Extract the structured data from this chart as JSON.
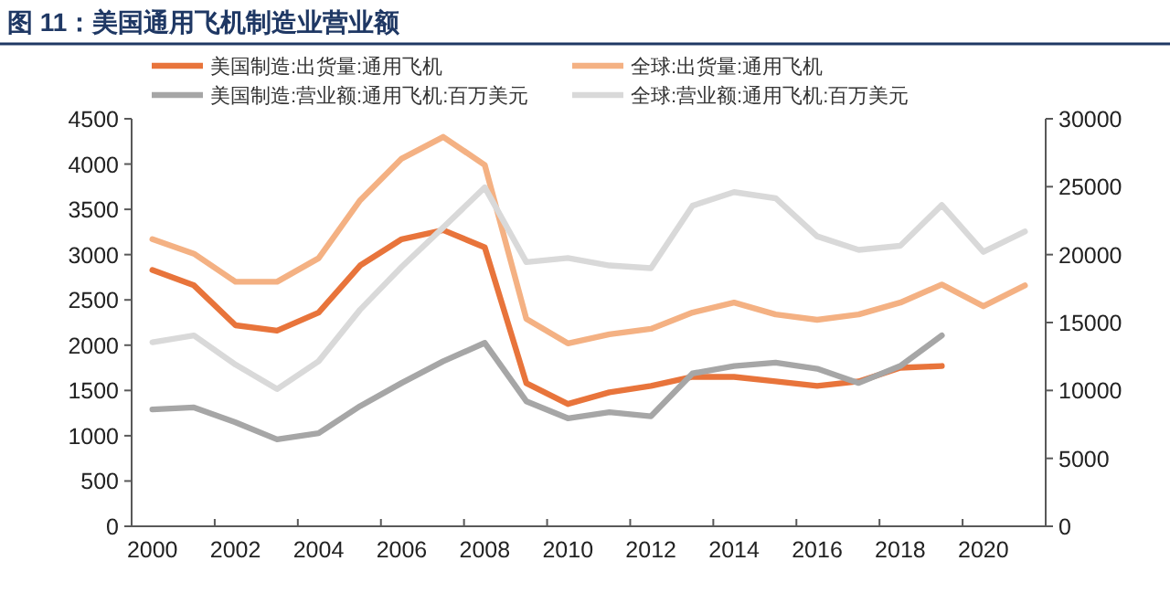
{
  "chart_data": {
    "type": "line",
    "title": "图 11：美国通用飞机制造业营业额",
    "categories": [
      "2000",
      null,
      "2002",
      null,
      "2004",
      null,
      "2006",
      null,
      "2008",
      null,
      "2010",
      null,
      "2012",
      null,
      "2014",
      null,
      "2016",
      null,
      "2018",
      null,
      "2020",
      null
    ],
    "ylim": [
      0,
      4500
    ],
    "yticks": [
      0,
      500,
      1000,
      1500,
      2000,
      2500,
      3000,
      3500,
      4000,
      4500
    ],
    "y2lim": [
      0,
      30000
    ],
    "y2ticks": [
      0,
      5000,
      10000,
      15000,
      20000,
      25000,
      30000
    ],
    "legend": "top",
    "grid": false,
    "marker": "none",
    "line_style": "solid",
    "series": [
      {
        "name": "美国制造:出货量:通用飞机",
        "color": "#e8743b",
        "values": [
          2830,
          2660,
          2220,
          2160,
          2360,
          2880,
          3170,
          3270,
          3080,
          1580,
          1350,
          1480,
          1550,
          1650,
          1650,
          1600,
          1550,
          1600,
          1750,
          1770,
          null,
          null
        ]
      },
      {
        "name": "全球:出货量:通用飞机",
        "color": "#f4b183",
        "values": [
          3170,
          3010,
          2700,
          2700,
          2960,
          3600,
          4060,
          4300,
          3990,
          2290,
          2020,
          2120,
          2180,
          2360,
          2470,
          2340,
          2280,
          2340,
          2470,
          2670,
          2430,
          2660
        ]
      },
      {
        "name": "美国制造:营业额:通用飞机:百万美元",
        "color": "#a6a6a6",
        "axis": "y2",
        "values": [
          8600,
          8750,
          7650,
          6400,
          6850,
          8850,
          10550,
          12150,
          13500,
          9200,
          7950,
          8400,
          8100,
          11250,
          11800,
          12050,
          11600,
          10550,
          11800,
          14050,
          null,
          null
        ]
      },
      {
        "name": "全球:营业额:通用飞机:百万美元",
        "color": "#d9d9d9",
        "axis": "y2",
        "values": [
          13550,
          14050,
          11900,
          10100,
          12150,
          15950,
          19100,
          22000,
          24950,
          19450,
          19750,
          19200,
          19000,
          23600,
          24600,
          24150,
          21350,
          20350,
          20650,
          23650,
          20200,
          21700
        ]
      }
    ]
  }
}
